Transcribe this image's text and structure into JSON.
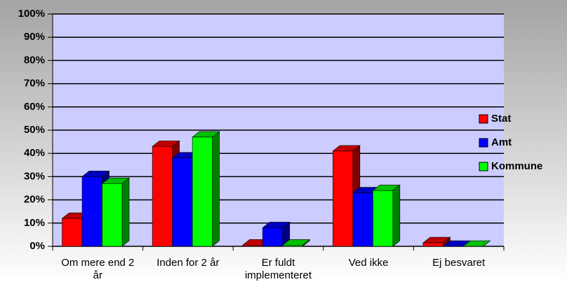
{
  "chart_data": {
    "type": "bar3d",
    "categories": [
      "Om mere end 2 år",
      "Inden for 2 år",
      "Er fuldt implementeret",
      "Ved ikke",
      "Ej besvaret"
    ],
    "series": [
      {
        "name": "Stat",
        "color": "#ff0000",
        "values": [
          12,
          43,
          0.5,
          41,
          1.5
        ]
      },
      {
        "name": "Amt",
        "color": "#0000ff",
        "values": [
          30,
          38,
          8,
          23,
          0
        ]
      },
      {
        "name": "Kommune",
        "color": "#00ff00",
        "values": [
          27,
          47,
          0.5,
          24,
          0
        ]
      }
    ],
    "ylim": [
      0,
      100
    ],
    "yticks": [
      {
        "value": 0,
        "label": "0%"
      },
      {
        "value": 10,
        "label": "10%"
      },
      {
        "value": 20,
        "label": "20%"
      },
      {
        "value": 30,
        "label": "30%"
      },
      {
        "value": 40,
        "label": "40%"
      },
      {
        "value": 50,
        "label": "50%"
      },
      {
        "value": 60,
        "label": "60%"
      },
      {
        "value": 70,
        "label": "70%"
      },
      {
        "value": 80,
        "label": "80%"
      },
      {
        "value": 90,
        "label": "90%"
      },
      {
        "value": 100,
        "label": "100%"
      }
    ],
    "grid": true,
    "legend": "right"
  }
}
